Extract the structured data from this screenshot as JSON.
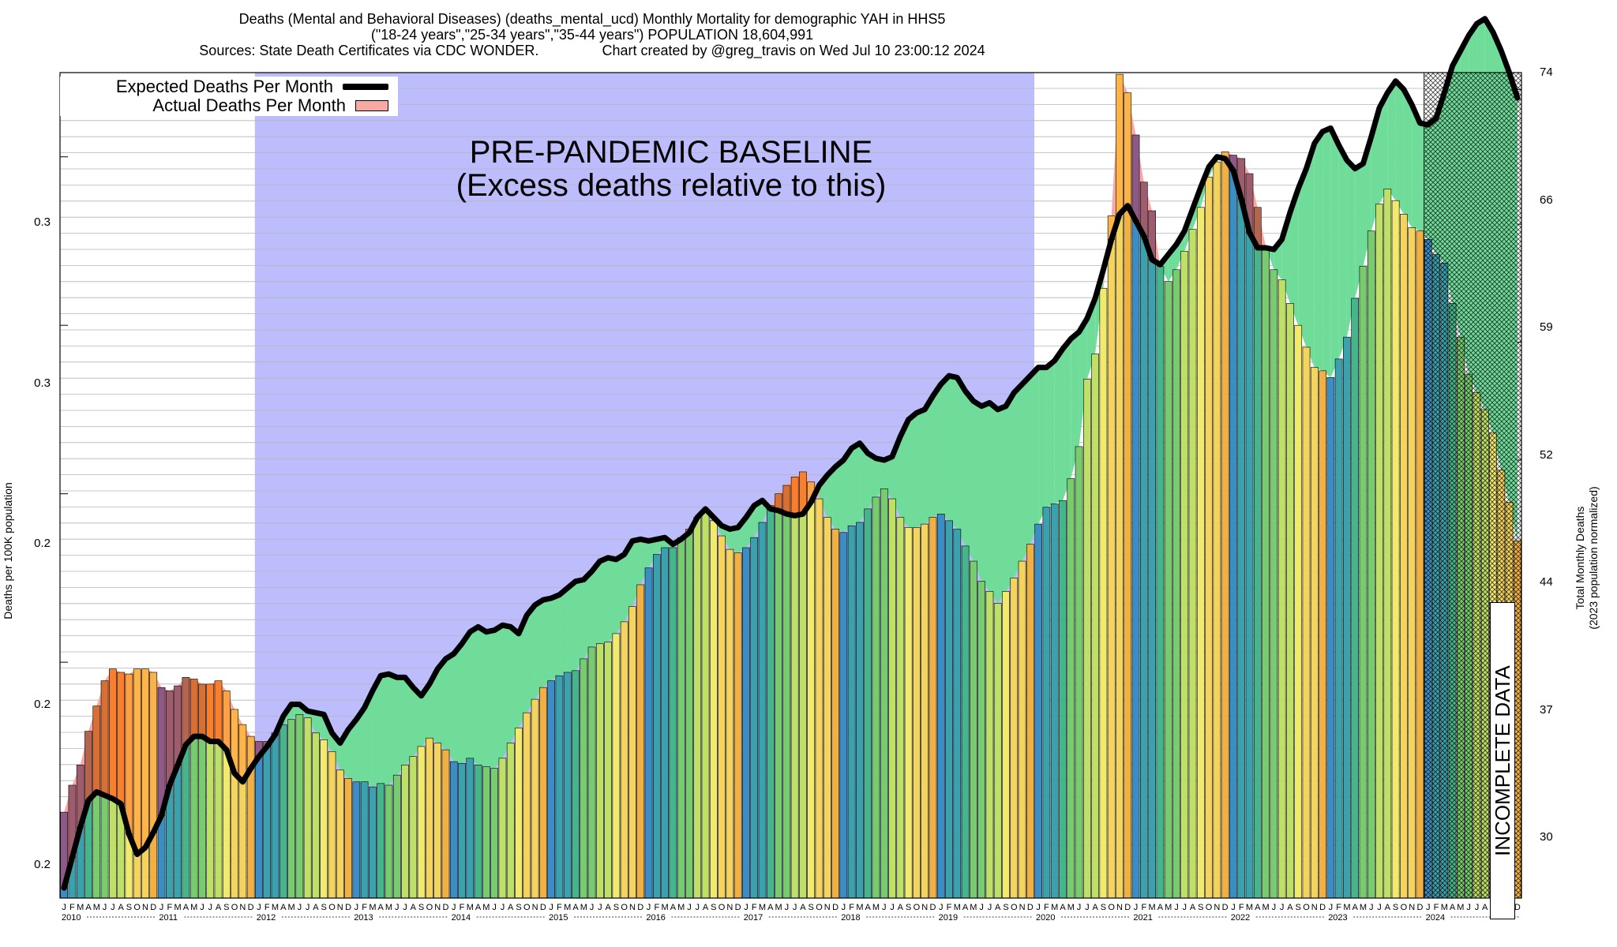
{
  "title": {
    "line1": "Deaths (Mental and Behavioral Diseases) (deaths_mental_ucd) Monthly Mortality for demographic YAH in HHS5",
    "line2": "(\"18-24 years\",\"25-34 years\",\"35-44 years\") POPULATION 18,604,991",
    "line3": "Sources: State Death Certificates via CDC WONDER.                Chart created by @greg_travis on Wed Jul 10 23:00:12 2024"
  },
  "legend": {
    "expected_label": "Expected Deaths Per Month",
    "actual_label": "Actual Deaths Per Month"
  },
  "annotations": {
    "baseline_title": "PRE-PANDEMIC BASELINE",
    "baseline_subtitle": "(Excess deaths relative to this)",
    "incomplete_label": "INCOMPLETE DATA"
  },
  "colors": {
    "baseline_band": "#bdbdfd",
    "excess_fill": "#6fdc9a",
    "deficit_fill": "#f7a9a3",
    "expected_line": "#000000",
    "bar_palette": [
      "#3a8ec4",
      "#3aa1ad",
      "#46b58c",
      "#79cb6f",
      "#bfe067",
      "#f2ea6c",
      "#f4d45c",
      "#f1b042"
    ],
    "bar_excess_palette": [
      "#8d5a87",
      "#9d5d6f",
      "#b4654f",
      "#d77034",
      "#fa7f2d",
      "#fda243",
      "#fdb547",
      "#f8b34a"
    ]
  },
  "chart_data": {
    "type": "bar",
    "title": "Deaths (Mental and Behavioral Diseases) (deaths_mental_ucd) Monthly Mortality for demographic YAH in HHS5",
    "ylabel_left": "Deaths per 100K population",
    "ylabel_right": "Total Monthly Deaths",
    "ylabel_right_sub": "(2023 population normalized)",
    "ylim_right": [
      26.0,
      75.0
    ],
    "yticks_left": [
      "0.3",
      "0.3",
      "0.2",
      "0.2",
      "0.2"
    ],
    "yticks_left_values": [
      70.0,
      60.0,
      50.0,
      40.0,
      30.0
    ],
    "yticks_right": [
      74,
      66,
      59,
      52,
      44,
      37,
      30
    ],
    "month_letters": [
      "J",
      "F",
      "M",
      "A",
      "M",
      "J",
      "J",
      "A",
      "S",
      "O",
      "N",
      "D"
    ],
    "years": [
      "2010",
      "2011",
      "2012",
      "2013",
      "2014",
      "2015",
      "2016",
      "2017",
      "2018",
      "2019",
      "2020",
      "2021",
      "2022",
      "2023",
      "2024"
    ],
    "baseline_months": [
      24,
      119
    ],
    "incomplete_from_month": 168,
    "series": [
      {
        "name": "Actual Deaths Per Month",
        "start": "2010-01",
        "values": [
          31.1,
          32.7,
          33.9,
          35.9,
          37.4,
          38.9,
          39.6,
          39.4,
          39.3,
          39.6,
          39.6,
          39.4,
          38.5,
          38.3,
          38.6,
          39.1,
          39.0,
          38.7,
          38.7,
          38.9,
          38.3,
          37.2,
          36.3,
          35.6,
          35.3,
          35.3,
          35.8,
          36.3,
          36.6,
          36.9,
          36.7,
          35.8,
          35.4,
          34.7,
          33.6,
          33.1,
          32.9,
          32.9,
          32.6,
          32.8,
          32.7,
          33.3,
          33.9,
          34.4,
          35.0,
          35.5,
          35.2,
          34.8,
          34.1,
          34.0,
          34.3,
          33.9,
          33.8,
          33.7,
          34.3,
          35.2,
          36.1,
          37.0,
          37.8,
          38.5,
          38.9,
          39.2,
          39.4,
          39.5,
          40.2,
          40.9,
          41.1,
          41.2,
          41.7,
          42.4,
          43.3,
          44.6,
          45.6,
          46.4,
          46.8,
          46.8,
          47.4,
          47.9,
          48.6,
          49.1,
          48.4,
          47.5,
          46.7,
          46.5,
          46.8,
          47.4,
          48.3,
          49.3,
          50.0,
          50.5,
          51.0,
          51.3,
          50.7,
          49.7,
          48.6,
          47.9,
          47.7,
          48.1,
          48.3,
          49.1,
          49.8,
          50.3,
          49.7,
          48.6,
          48.0,
          48.0,
          48.2,
          48.6,
          48.8,
          48.4,
          47.9,
          46.9,
          46.0,
          44.8,
          44.2,
          43.5,
          44.2,
          45.0,
          46.0,
          47.0,
          48.2,
          49.2,
          49.4,
          49.6,
          50.9,
          52.8,
          56.8,
          58.3,
          62.2,
          66.5,
          74.9,
          73.8,
          71.3,
          68.5,
          66.8,
          63.5,
          62.6,
          63.3,
          64.4,
          65.7,
          67.0,
          68.8,
          69.7,
          70.3,
          70.1,
          69.9,
          69.0,
          67.0,
          64.7,
          63.3,
          62.7,
          61.3,
          60.0,
          58.7,
          57.5,
          57.3,
          56.9,
          58.0,
          59.3,
          61.6,
          63.5,
          65.6,
          67.2,
          68.1,
          67.4,
          66.6,
          65.8,
          65.6,
          65.1,
          64.2,
          63.7,
          61.3,
          59.3,
          57.1,
          56.0,
          55.0,
          53.6,
          51.4,
          49.5,
          47.2
        ]
      },
      {
        "name": "Expected Deaths Per Month",
        "start": "2010-01",
        "values": [
          26.6,
          28.4,
          30.2,
          31.8,
          32.3,
          32.1,
          31.9,
          31.6,
          29.8,
          28.6,
          29.0,
          29.9,
          30.9,
          32.7,
          33.9,
          35.1,
          35.6,
          35.6,
          35.3,
          35.3,
          34.8,
          33.4,
          32.9,
          33.7,
          34.4,
          35.0,
          35.7,
          36.8,
          37.5,
          37.5,
          37.1,
          37.0,
          36.9,
          35.8,
          35.2,
          36.0,
          36.6,
          37.3,
          38.3,
          39.2,
          39.3,
          39.1,
          39.1,
          38.5,
          38.0,
          38.7,
          39.6,
          40.2,
          40.5,
          41.1,
          41.8,
          42.1,
          41.8,
          41.9,
          42.2,
          42.1,
          41.7,
          42.8,
          43.4,
          43.7,
          43.8,
          44.0,
          44.4,
          44.8,
          44.9,
          45.4,
          46.0,
          46.2,
          46.1,
          46.4,
          47.2,
          47.3,
          47.2,
          47.3,
          47.4,
          47.0,
          47.3,
          47.7,
          48.6,
          49.1,
          48.6,
          48.1,
          47.9,
          48.0,
          48.6,
          49.3,
          49.6,
          49.1,
          49.0,
          48.8,
          48.7,
          48.8,
          49.5,
          50.5,
          51.1,
          51.6,
          52.0,
          52.7,
          53.0,
          52.4,
          52.1,
          52.0,
          52.2,
          53.4,
          54.4,
          54.8,
          55.0,
          55.8,
          56.5,
          57.0,
          56.9,
          56.1,
          55.5,
          55.2,
          55.4,
          55.0,
          55.2,
          56.0,
          56.5,
          57.0,
          57.5,
          57.5,
          57.9,
          58.6,
          59.2,
          59.6,
          60.4,
          61.6,
          63.3,
          65.1,
          66.6,
          67.1,
          66.2,
          65.3,
          63.9,
          63.6,
          64.2,
          64.8,
          65.6,
          66.9,
          68.2,
          69.4,
          70.0,
          69.9,
          69.2,
          67.5,
          65.5,
          64.6,
          64.6,
          64.5,
          65.1,
          66.7,
          68.1,
          69.3,
          70.8,
          71.5,
          71.7,
          70.7,
          69.8,
          69.3,
          69.6,
          71.2,
          72.9,
          73.8,
          74.5,
          74.0,
          73.1,
          72.0,
          71.9,
          72.3,
          73.8,
          75.4,
          76.3,
          77.2,
          77.9,
          78.2,
          77.4,
          76.3,
          75.0,
          73.5,
          73.0
        ]
      }
    ]
  }
}
